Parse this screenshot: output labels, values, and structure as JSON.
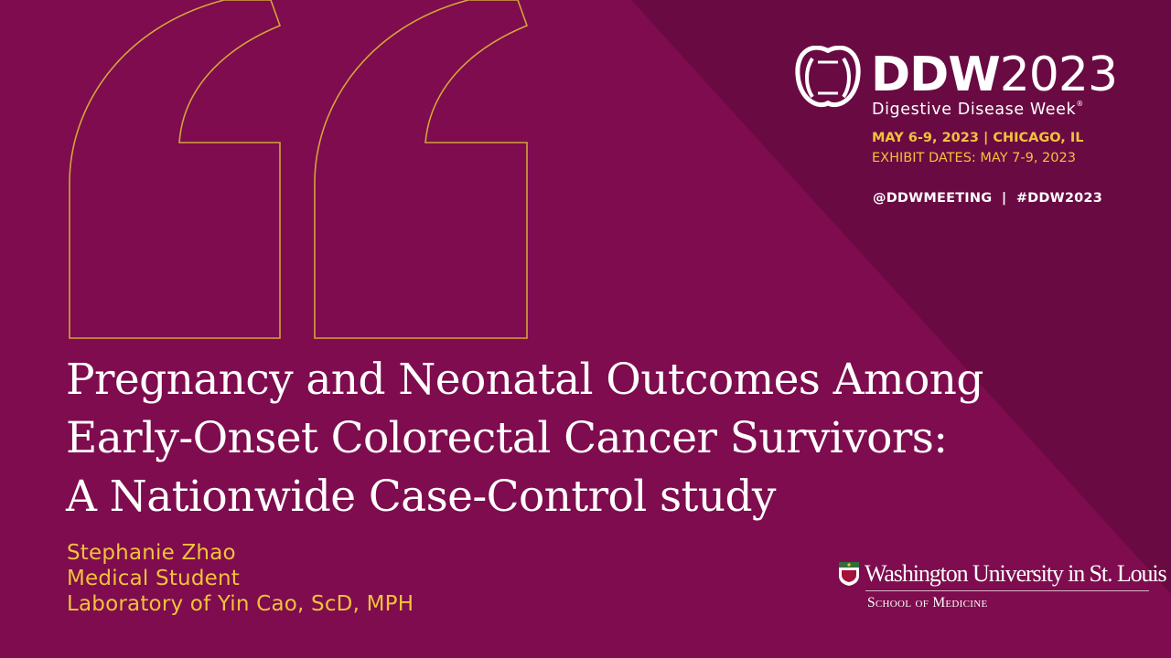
{
  "colors": {
    "background": "#7e0c4e",
    "diagonal_shade": "#6a0a42",
    "accent_gold": "#f2c23a",
    "text_white": "#ffffff"
  },
  "branding": {
    "logo_text_bold": "DDW",
    "logo_text_year": "2023",
    "logo_subtitle": "Digestive Disease Week",
    "logo_mark": "®",
    "event_dates": "MAY 6-9, 2023 | CHICAGO, IL",
    "exhibit_dates": "EXHIBIT DATES: MAY 7-9, 2023",
    "social": "@DDWMEETING  |  #DDW2023"
  },
  "title_lines": [
    "Pregnancy and Neonatal Outcomes Among",
    "Early-Onset Colorectal Cancer Survivors:",
    "A Nationwide Case-Control study"
  ],
  "presenter": {
    "name": "Stephanie Zhao",
    "role": "Medical Student",
    "lab": "Laboratory of Yin Cao, ScD, MPH"
  },
  "institution": {
    "name": "Washington University in St. Louis",
    "school": "School of Medicine"
  },
  "icons": {
    "quote": "quotation-mark-icon",
    "ddw_mark": "ddw-emblem-icon",
    "shield": "university-shield-icon"
  }
}
